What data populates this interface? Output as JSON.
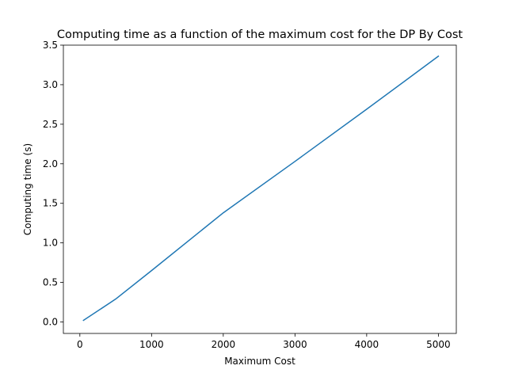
{
  "chart_data": {
    "type": "line",
    "title": "Computing time as a function of the maximum cost for the DP By Cost",
    "xlabel": "Maximum Cost",
    "ylabel": "Computing time (s)",
    "xlim": [
      -230,
      5250
    ],
    "ylim": [
      -0.145,
      3.5
    ],
    "grid": false,
    "x_ticks": [
      0,
      1000,
      2000,
      3000,
      4000,
      5000
    ],
    "y_ticks": [
      0.0,
      0.5,
      1.0,
      1.5,
      2.0,
      2.5,
      3.0,
      3.5
    ],
    "x_tick_labels": [
      "0",
      "1000",
      "2000",
      "3000",
      "4000",
      "5000"
    ],
    "y_tick_labels": [
      "0.0",
      "0.5",
      "1.0",
      "1.5",
      "2.0",
      "2.5",
      "3.0",
      "3.5"
    ],
    "series": [
      {
        "color": "#1f77b4",
        "x": [
          50,
          500,
          1000,
          2000,
          3000,
          4000,
          5000
        ],
        "y": [
          0.02,
          0.29,
          0.65,
          1.38,
          2.03,
          2.69,
          3.36
        ]
      }
    ]
  }
}
